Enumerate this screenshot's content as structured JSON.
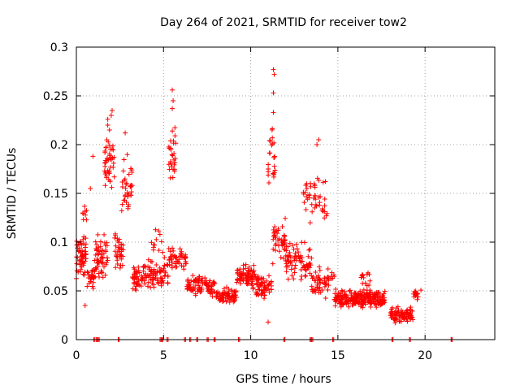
{
  "chart_data": {
    "type": "scatter",
    "title": "Day 264 of 2021, SRMTID for receiver tow2",
    "xlabel": "GPS time / hours",
    "ylabel": "SRMTID / TECUs",
    "xlim": [
      0,
      24
    ],
    "ylim": [
      0,
      0.3
    ],
    "grid": true,
    "marker": "+",
    "series_color": "#ff0000",
    "x_ticks": [
      "0",
      "5",
      "10",
      "15",
      "20"
    ],
    "y_ticks": [
      "0",
      "0.05",
      "0.1",
      "0.15",
      "0.2",
      "0.25",
      "0.3"
    ],
    "x_tick_values": [
      0,
      5,
      10,
      15,
      20
    ],
    "y_tick_values": [
      0,
      0.05,
      0.1,
      0.15,
      0.2,
      0.25,
      0.3
    ],
    "clusters": [
      {
        "x_start": 0.0,
        "x_end": 0.6,
        "y_center": 0.085,
        "y_spread": 0.03,
        "count": 60
      },
      {
        "x_start": 0.3,
        "x_end": 0.6,
        "y_center": 0.13,
        "y_spread": 0.02,
        "count": 8
      },
      {
        "x_start": 0.6,
        "x_end": 1.1,
        "y_center": 0.065,
        "y_spread": 0.02,
        "count": 30
      },
      {
        "x_start": 1.1,
        "x_end": 1.8,
        "y_center": 0.085,
        "y_spread": 0.035,
        "count": 55
      },
      {
        "x_start": 1.6,
        "x_end": 2.2,
        "y_center": 0.18,
        "y_spread": 0.035,
        "count": 45
      },
      {
        "x_start": 2.2,
        "x_end": 2.7,
        "y_center": 0.09,
        "y_spread": 0.03,
        "count": 35
      },
      {
        "x_start": 2.6,
        "x_end": 3.2,
        "y_center": 0.155,
        "y_spread": 0.04,
        "count": 35
      },
      {
        "x_start": 3.2,
        "x_end": 5.0,
        "y_center": 0.065,
        "y_spread": 0.02,
        "count": 110
      },
      {
        "x_start": 4.3,
        "x_end": 5.0,
        "y_center": 0.1,
        "y_spread": 0.02,
        "count": 12
      },
      {
        "x_start": 5.0,
        "x_end": 5.3,
        "y_center": 0.07,
        "y_spread": 0.02,
        "count": 15
      },
      {
        "x_start": 5.3,
        "x_end": 5.7,
        "y_center": 0.19,
        "y_spread": 0.045,
        "count": 28
      },
      {
        "x_start": 5.3,
        "x_end": 6.3,
        "y_center": 0.085,
        "y_spread": 0.02,
        "count": 50
      },
      {
        "x_start": 6.3,
        "x_end": 8.0,
        "y_center": 0.055,
        "y_spread": 0.015,
        "count": 90
      },
      {
        "x_start": 8.0,
        "x_end": 9.2,
        "y_center": 0.045,
        "y_spread": 0.012,
        "count": 70
      },
      {
        "x_start": 9.2,
        "x_end": 10.3,
        "y_center": 0.065,
        "y_spread": 0.015,
        "count": 80
      },
      {
        "x_start": 10.3,
        "x_end": 11.2,
        "y_center": 0.055,
        "y_spread": 0.02,
        "count": 60
      },
      {
        "x_start": 11.0,
        "x_end": 11.4,
        "y_center": 0.19,
        "y_spread": 0.05,
        "count": 25
      },
      {
        "x_start": 11.2,
        "x_end": 12.0,
        "y_center": 0.1,
        "y_spread": 0.03,
        "count": 45
      },
      {
        "x_start": 12.0,
        "x_end": 13.5,
        "y_center": 0.08,
        "y_spread": 0.025,
        "count": 80
      },
      {
        "x_start": 13.0,
        "x_end": 14.4,
        "y_center": 0.145,
        "y_spread": 0.035,
        "count": 45
      },
      {
        "x_start": 13.5,
        "x_end": 14.8,
        "y_center": 0.06,
        "y_spread": 0.02,
        "count": 60
      },
      {
        "x_start": 14.8,
        "x_end": 17.7,
        "y_center": 0.042,
        "y_spread": 0.012,
        "count": 240
      },
      {
        "x_start": 16.2,
        "x_end": 17.0,
        "y_center": 0.06,
        "y_spread": 0.015,
        "count": 15
      },
      {
        "x_start": 18.0,
        "x_end": 19.3,
        "y_center": 0.025,
        "y_spread": 0.01,
        "count": 90
      },
      {
        "x_start": 19.3,
        "x_end": 19.8,
        "y_center": 0.045,
        "y_spread": 0.01,
        "count": 15
      }
    ],
    "outliers": [
      {
        "x": 11.3,
        "y": 0.277
      },
      {
        "x": 11.35,
        "y": 0.272
      },
      {
        "x": 11.3,
        "y": 0.253
      },
      {
        "x": 11.3,
        "y": 0.233
      },
      {
        "x": 5.5,
        "y": 0.256
      },
      {
        "x": 5.55,
        "y": 0.245
      },
      {
        "x": 5.5,
        "y": 0.237
      },
      {
        "x": 2.05,
        "y": 0.235
      },
      {
        "x": 2.0,
        "y": 0.23
      },
      {
        "x": 1.8,
        "y": 0.226
      },
      {
        "x": 1.8,
        "y": 0.22
      },
      {
        "x": 1.9,
        "y": 0.215
      },
      {
        "x": 2.8,
        "y": 0.212
      },
      {
        "x": 13.9,
        "y": 0.205
      },
      {
        "x": 13.8,
        "y": 0.2
      },
      {
        "x": 0.95,
        "y": 0.188
      },
      {
        "x": 0.8,
        "y": 0.155
      },
      {
        "x": 0.5,
        "y": 0.035
      },
      {
        "x": 11.0,
        "y": 0.018
      },
      {
        "x": 21.5,
        "y": 0.0
      }
    ],
    "zero_points": [
      1.0,
      1.15,
      1.25,
      2.4,
      4.8,
      4.9,
      5.2,
      6.2,
      6.5,
      6.9,
      7.5,
      7.9,
      9.3,
      11.9,
      13.4,
      13.5,
      14.7,
      18.1,
      19.1,
      21.5
    ]
  }
}
